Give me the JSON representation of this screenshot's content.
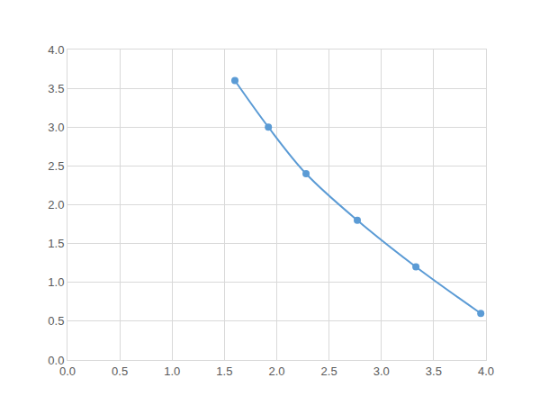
{
  "chart_data": {
    "type": "line",
    "x": [
      1.6,
      1.92,
      2.28,
      2.77,
      3.33,
      3.95
    ],
    "values": [
      3.6,
      3.0,
      2.4,
      1.8,
      1.2,
      0.6
    ],
    "color": "#5b9bd5",
    "marker": "circle",
    "line_style": "smooth",
    "xlim": [
      0,
      4
    ],
    "xticks": [
      {
        "value": 0,
        "label": "0.0"
      },
      0.5,
      {
        "value": 1,
        "label": "1.0"
      },
      1.5,
      {
        "value": 2,
        "label": "2.0"
      },
      2.5,
      {
        "value": 3,
        "label": "3.0"
      },
      3.5,
      {
        "value": 4,
        "label": "4.0"
      }
    ],
    "ylim": [
      0,
      4
    ],
    "yticks": [
      {
        "value": 0,
        "label": "0.0"
      },
      0.5,
      {
        "value": 1,
        "label": "1.0"
      },
      1.5,
      {
        "value": 2,
        "label": "2.0"
      },
      2.5,
      {
        "value": 3,
        "label": "3.0"
      },
      3.5,
      {
        "value": 4,
        "label": "4.0"
      }
    ],
    "grid": true
  }
}
